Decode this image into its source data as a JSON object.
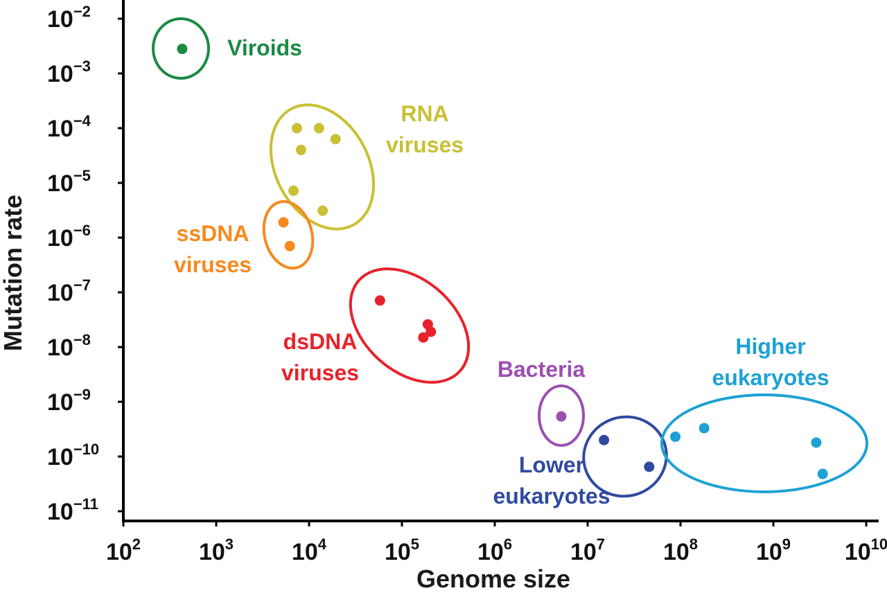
{
  "chart_data": {
    "type": "scatter",
    "xlabel": "Genome size",
    "ylabel": "Mutation rate",
    "xscale": "log",
    "yscale": "log",
    "xlim": [
      100,
      10000000000
    ],
    "ylim": [
      1e-11,
      0.01
    ],
    "x_ticks": [
      {
        "base": "10",
        "exp": "2"
      },
      {
        "base": "10",
        "exp": "3"
      },
      {
        "base": "10",
        "exp": "4"
      },
      {
        "base": "10",
        "exp": "5"
      },
      {
        "base": "10",
        "exp": "6"
      },
      {
        "base": "10",
        "exp": "7"
      },
      {
        "base": "10",
        "exp": "8"
      },
      {
        "base": "10",
        "exp": "9"
      },
      {
        "base": "10",
        "exp": "10"
      }
    ],
    "y_ticks": [
      {
        "base": "10",
        "exp": "−2"
      },
      {
        "base": "10",
        "exp": "−3"
      },
      {
        "base": "10",
        "exp": "−4"
      },
      {
        "base": "10",
        "exp": "−5"
      },
      {
        "base": "10",
        "exp": "−6"
      },
      {
        "base": "10",
        "exp": "−7"
      },
      {
        "base": "10",
        "exp": "−8"
      },
      {
        "base": "10",
        "exp": "−9"
      },
      {
        "base": "10",
        "exp": "−10"
      },
      {
        "base": "10",
        "exp": "−11"
      }
    ],
    "grid": false,
    "groups": [
      {
        "label": [
          "Viroids"
        ],
        "color": "#1a8a43",
        "points": [
          [
            430,
            0.0028
          ]
        ]
      },
      {
        "label": [
          "RNA",
          "viruses"
        ],
        "color": "#c9c034",
        "points": [
          [
            7400,
            0.0001
          ],
          [
            12800,
            0.0001
          ],
          [
            19300,
            6.3e-05
          ],
          [
            8200,
            4e-05
          ],
          [
            6800,
            7.2e-06
          ],
          [
            14000,
            3.1e-06
          ]
        ]
      },
      {
        "label": [
          "ssDNA",
          "viruses"
        ],
        "color": "#f58a1f",
        "points": [
          [
            5300,
            1.9e-06
          ],
          [
            6200,
            7e-07
          ]
        ]
      },
      {
        "label": [
          "dsDNA",
          "viruses"
        ],
        "color": "#e8222a",
        "points": [
          [
            58000,
            7.1e-08
          ],
          [
            190000,
            2.6e-08
          ],
          [
            205000,
            1.9e-08
          ],
          [
            170000,
            1.5e-08
          ]
        ]
      },
      {
        "label": [
          "Bacteria"
        ],
        "color": "#9b4fb0",
        "points": [
          [
            5200000,
            5.4e-10
          ]
        ]
      },
      {
        "label": [
          "Lower",
          "eukaryotes"
        ],
        "color": "#2f4aa0",
        "points": [
          [
            15000000,
            2e-10
          ],
          [
            46000000,
            6.5e-11
          ]
        ]
      },
      {
        "label": [
          "Higher",
          "eukaryotes"
        ],
        "color": "#1ea1d4",
        "points": [
          [
            88000000,
            2.3e-10
          ],
          [
            180000000,
            3.3e-10
          ],
          [
            2900000000,
            1.8e-10
          ],
          [
            3400000000,
            4.8e-11
          ]
        ]
      }
    ]
  }
}
